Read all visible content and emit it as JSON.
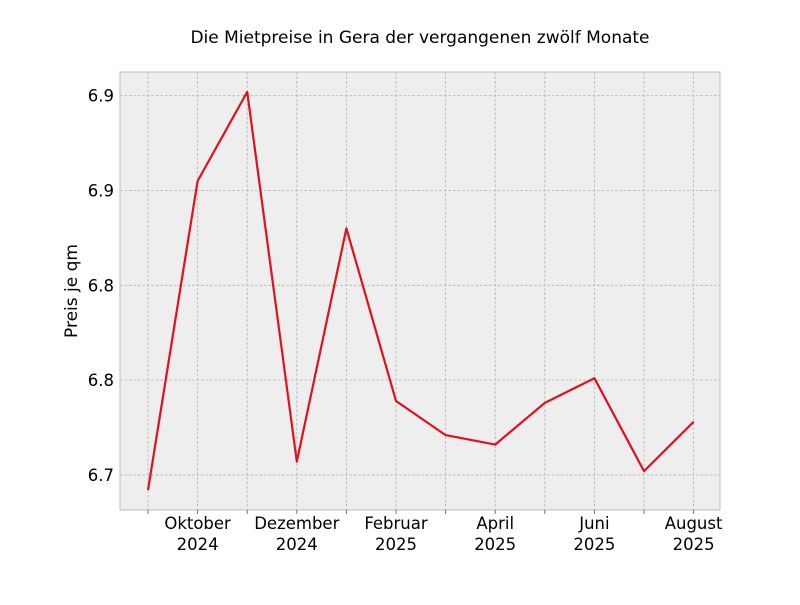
{
  "chart_data": {
    "type": "line",
    "title": "Die Mietpreise in Gera der vergangenen zwölf Monate",
    "xlabel": "",
    "ylabel": "Preis je qm",
    "x": [
      "2024-09",
      "2024-10",
      "2024-11",
      "2024-12",
      "2025-01",
      "2025-02",
      "2025-03",
      "2025-04",
      "2025-05",
      "2025-06",
      "2025-07",
      "2025-08"
    ],
    "x_tick_labels": [
      {
        "x": "2024-10",
        "line1": "Oktober",
        "line2": "2024"
      },
      {
        "x": "2024-12",
        "line1": "Dezember",
        "line2": "2024"
      },
      {
        "x": "2025-02",
        "line1": "Februar",
        "line2": "2025"
      },
      {
        "x": "2025-04",
        "line1": "April",
        "line2": "2025"
      },
      {
        "x": "2025-06",
        "line1": "Juni",
        "line2": "2025"
      },
      {
        "x": "2025-08",
        "line1": "August",
        "line2": "2025"
      }
    ],
    "y_ticks": [
      {
        "value": 6.7,
        "label": "6.7"
      },
      {
        "value": 6.75,
        "label": "6.8"
      },
      {
        "value": 6.8,
        "label": "6.8"
      },
      {
        "value": 6.85,
        "label": "6.9"
      },
      {
        "value": 6.9,
        "label": "6.9"
      }
    ],
    "ylim": [
      6.6815,
      6.9125
    ],
    "series": [
      {
        "values": [
          6.692,
          6.855,
          6.902,
          6.707,
          6.83,
          6.739,
          6.721,
          6.716,
          6.738,
          6.751,
          6.702,
          6.728
        ],
        "color": "#e0111e"
      }
    ],
    "grid": true,
    "legend": "none",
    "background_color": "#eeeeee",
    "grid_color": "#b0b0b0"
  }
}
